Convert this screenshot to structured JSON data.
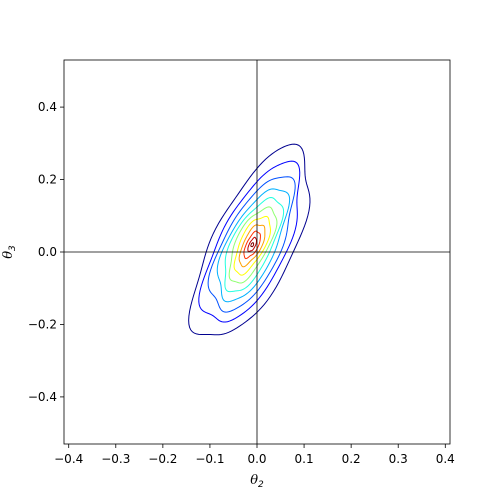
{
  "chart_data": {
    "type": "contour",
    "title": "",
    "xlabel": "θ",
    "xlabel_sub": "2",
    "ylabel": "θ",
    "ylabel_sub": "3",
    "xlim": [
      -0.41,
      0.41
    ],
    "ylim": [
      -0.53,
      0.53
    ],
    "x_ticks": [
      -0.4,
      -0.3,
      -0.2,
      -0.1,
      0.0,
      0.1,
      0.2,
      0.3,
      0.4
    ],
    "x_tick_labels": [
      "−0.4",
      "−0.3",
      "−0.2",
      "−0.1",
      "0.0",
      "0.1",
      "0.2",
      "0.3",
      "0.4"
    ],
    "y_ticks": [
      -0.4,
      -0.2,
      0.0,
      0.2,
      0.4
    ],
    "y_tick_labels": [
      "−0.4",
      "−0.2",
      "0.0",
      "0.2",
      "0.4"
    ],
    "reference_lines": {
      "x": 0.0,
      "y": 0.0
    },
    "grid": false,
    "colormap": "jet",
    "center": [
      -0.01,
      0.02
    ],
    "correlation_angle_deg": 56,
    "levels": [
      {
        "level": 1,
        "color": "#00008f",
        "a": 0.305,
        "b": 0.13
      },
      {
        "level": 2,
        "color": "#0000ff",
        "a": 0.255,
        "b": 0.108
      },
      {
        "level": 3,
        "color": "#0050ff",
        "a": 0.215,
        "b": 0.092
      },
      {
        "level": 4,
        "color": "#00b0ff",
        "a": 0.18,
        "b": 0.077
      },
      {
        "level": 5,
        "color": "#20ffdf",
        "a": 0.15,
        "b": 0.064
      },
      {
        "level": 6,
        "color": "#8fff70",
        "a": 0.12,
        "b": 0.052
      },
      {
        "level": 7,
        "color": "#ffff00",
        "a": 0.092,
        "b": 0.04
      },
      {
        "level": 8,
        "color": "#ffa000",
        "a": 0.066,
        "b": 0.029
      },
      {
        "level": 9,
        "color": "#ff3000",
        "a": 0.042,
        "b": 0.019
      },
      {
        "level": 10,
        "color": "#bf0000",
        "a": 0.022,
        "b": 0.01
      },
      {
        "level": 11,
        "color": "#800000",
        "a": 0.006,
        "b": 0.004
      }
    ]
  }
}
